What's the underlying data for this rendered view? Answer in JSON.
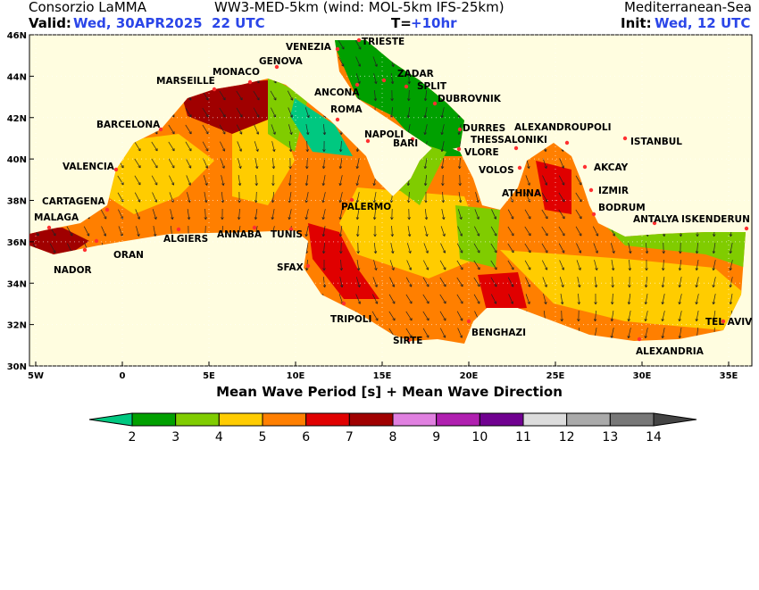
{
  "header": {
    "org": "Consorzio LaMMA",
    "model": "WW3-MED-5km (wind: MOL-5km IFS-25km)",
    "region": "Mediterranean-Sea",
    "valid_label": "Valid:",
    "valid_time": "Wed, 30APR2025  22 UTC",
    "step_label": "T=",
    "step": "+10hr",
    "init_label": "Init:",
    "init_time": "Wed, 12 UTC"
  },
  "map": {
    "lat_labels": [
      "46N",
      "44N",
      "42N",
      "40N",
      "38N",
      "36N",
      "34N",
      "32N",
      "30N"
    ],
    "lon_labels": [
      "5W",
      "0",
      "5E",
      "10E",
      "15E",
      "20E",
      "25E",
      "30E",
      "35E"
    ],
    "cities": [
      "VENEZIA",
      "TRIESTE",
      "GENOVA",
      "MONACO",
      "MARSEILLE",
      "ZADAR",
      "SPLIT",
      "ANCONA",
      "DUBROVNIK",
      "ROMA",
      "BARCELONA",
      "DURRES",
      "ALEXANDROUPOLI",
      "NAPOLI",
      "THESSALONIKI",
      "ISTANBUL",
      "BARI",
      "VLORE",
      "VALENCIA",
      "VOLOS",
      "AKCAY",
      "ATHINA",
      "IZMIR",
      "CARTAGENA",
      "PALERMO",
      "BODRUM",
      "MALAGA",
      "ANTALYA",
      "ISKENDERUN",
      "ALGIERS",
      "ANNABA",
      "TUNIS",
      "ORAN",
      "SFAX",
      "NADOR",
      "TRIPOLI",
      "TEL AVIV",
      "BENGHAZI",
      "SIRTE",
      "ALEXANDRIA"
    ],
    "title": "Mean Wave Period [s] + Mean Wave Direction"
  },
  "legend": {
    "ticks": [
      2,
      3,
      4,
      5,
      6,
      7,
      8,
      9,
      10,
      11,
      12,
      13,
      14
    ],
    "colors": [
      "#00c880",
      "#00a000",
      "#80cc00",
      "#ffcc00",
      "#ff7f00",
      "#e00000",
      "#a00000",
      "#e080e0",
      "#b020b0",
      "#700090",
      "#dcdcdc",
      "#aaaaaa",
      "#777777",
      "#444444"
    ]
  }
}
